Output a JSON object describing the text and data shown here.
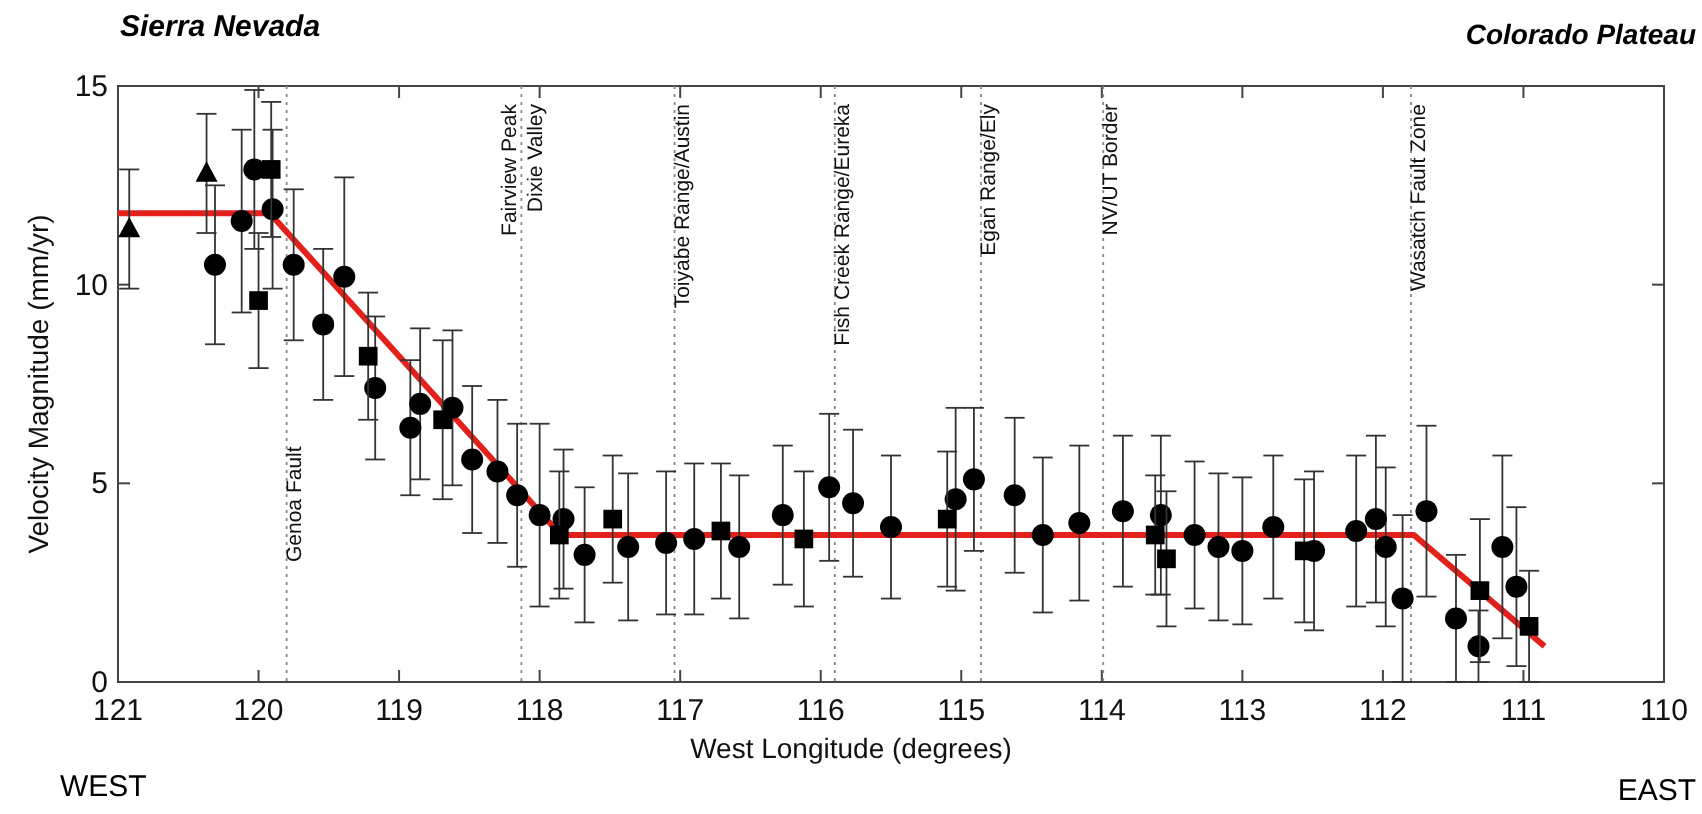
{
  "chart_data": {
    "type": "scatter",
    "xlabel": "West Longitude (degrees)",
    "ylabel": "Velocity Magnitude (mm/yr)",
    "xlim": [
      121,
      110
    ],
    "xticks": [
      121,
      120,
      119,
      118,
      117,
      116,
      115,
      114,
      113,
      112,
      111,
      110
    ],
    "ylim": [
      0,
      15
    ],
    "yticks": [
      0,
      5,
      10,
      15
    ],
    "grid": false,
    "annotations": [
      "Sierra Nevada",
      "Colorado Plateau",
      "WEST",
      "EAST"
    ],
    "ref_lines": [
      {
        "axis": "x",
        "value": 119.8,
        "label": "Genoa Fault",
        "line_style": "dotted",
        "color": "#888888"
      },
      {
        "axis": "x",
        "value": 118.13,
        "label": "Fairview Peak\nDixie Valley",
        "line_style": "dotted",
        "color": "#888888"
      },
      {
        "axis": "x",
        "value": 117.04,
        "label": "Toiyabe Range/Austin",
        "line_style": "dotted",
        "color": "#888888"
      },
      {
        "axis": "x",
        "value": 115.9,
        "label": "Fish Creek Range/Eureka",
        "line_style": "dotted",
        "color": "#888888"
      },
      {
        "axis": "x",
        "value": 114.86,
        "label": "Egan Range/Ely",
        "line_style": "dotted",
        "color": "#888888"
      },
      {
        "axis": "x",
        "value": 113.99,
        "label": "NV/UT Border",
        "line_style": "dotted",
        "color": "#888888"
      },
      {
        "axis": "x",
        "value": 111.8,
        "label": "Wasatch Fault Zone",
        "line_style": "dotted",
        "color": "#888888"
      }
    ],
    "series": [
      {
        "type": "line",
        "color": "#e3211c",
        "marker": "none",
        "line_style": "solid",
        "x": [
          121,
          119.92,
          117.85,
          111.78,
          110.85
        ],
        "values": [
          11.8,
          11.8,
          3.7,
          3.7,
          0.9
        ]
      },
      {
        "color": "#000000",
        "marker": "circle",
        "x": [
          120.31,
          120.12,
          120.03,
          119.9,
          119.75,
          119.54,
          119.39,
          119.17,
          118.92,
          118.85,
          118.62,
          118.48,
          118.3,
          118.16,
          118.0,
          117.83,
          117.68,
          117.37,
          117.1,
          116.9,
          116.58,
          116.27,
          115.94,
          115.77,
          115.5,
          115.04,
          114.91,
          114.62,
          114.42,
          114.16,
          113.85,
          113.58,
          113.34,
          113.17,
          113.0,
          112.78,
          112.49,
          112.19,
          112.05,
          111.98,
          111.86,
          111.69,
          111.48,
          111.32,
          111.15,
          111.05
        ],
        "values": [
          10.5,
          11.6,
          12.9,
          11.9,
          10.5,
          9.0,
          10.2,
          7.4,
          6.4,
          7.0,
          6.9,
          5.6,
          5.3,
          4.7,
          4.2,
          4.1,
          3.2,
          3.4,
          3.5,
          3.6,
          3.4,
          4.2,
          4.9,
          4.5,
          3.9,
          4.6,
          5.1,
          4.7,
          3.7,
          4.0,
          4.3,
          4.2,
          3.7,
          3.4,
          3.3,
          3.9,
          3.3,
          3.8,
          4.1,
          3.4,
          2.1,
          4.3,
          1.6,
          0.9,
          3.4,
          2.4
        ],
        "errors": [
          2,
          2.3,
          2,
          2,
          1.9,
          1.9,
          2.5,
          1.8,
          1.7,
          1.9,
          1.95,
          1.85,
          1.8,
          1.8,
          2.3,
          1.75,
          1.7,
          1.85,
          1.8,
          1.9,
          1.8,
          1.75,
          1.85,
          1.85,
          1.8,
          2.3,
          1.8,
          1.95,
          1.95,
          1.95,
          1.9,
          2,
          1.85,
          1.85,
          1.85,
          1.8,
          2,
          1.9,
          2.1,
          2,
          2.1,
          2.15,
          1.6,
          0.9,
          2.3,
          2.0
        ]
      },
      {
        "color": "#000000",
        "marker": "square",
        "x": [
          120.0,
          119.91,
          119.22,
          118.69,
          117.86,
          117.48,
          116.71,
          116.12,
          115.1,
          113.62,
          113.54,
          112.56,
          111.31,
          110.96
        ],
        "values": [
          9.6,
          12.9,
          8.2,
          6.6,
          3.7,
          4.1,
          3.8,
          3.6,
          4.1,
          3.7,
          3.1,
          3.3,
          2.3,
          1.4
        ],
        "errors": [
          1.7,
          1.7,
          1.6,
          2,
          1.6,
          1.6,
          1.7,
          1.7,
          1.7,
          1.5,
          1.7,
          1.8,
          1.8,
          1.4
        ]
      },
      {
        "color": "#000000",
        "marker": "triangle",
        "x": [
          120.92,
          120.37
        ],
        "values": [
          11.4,
          12.8
        ],
        "errors": [
          1.5,
          1.5
        ]
      }
    ]
  }
}
